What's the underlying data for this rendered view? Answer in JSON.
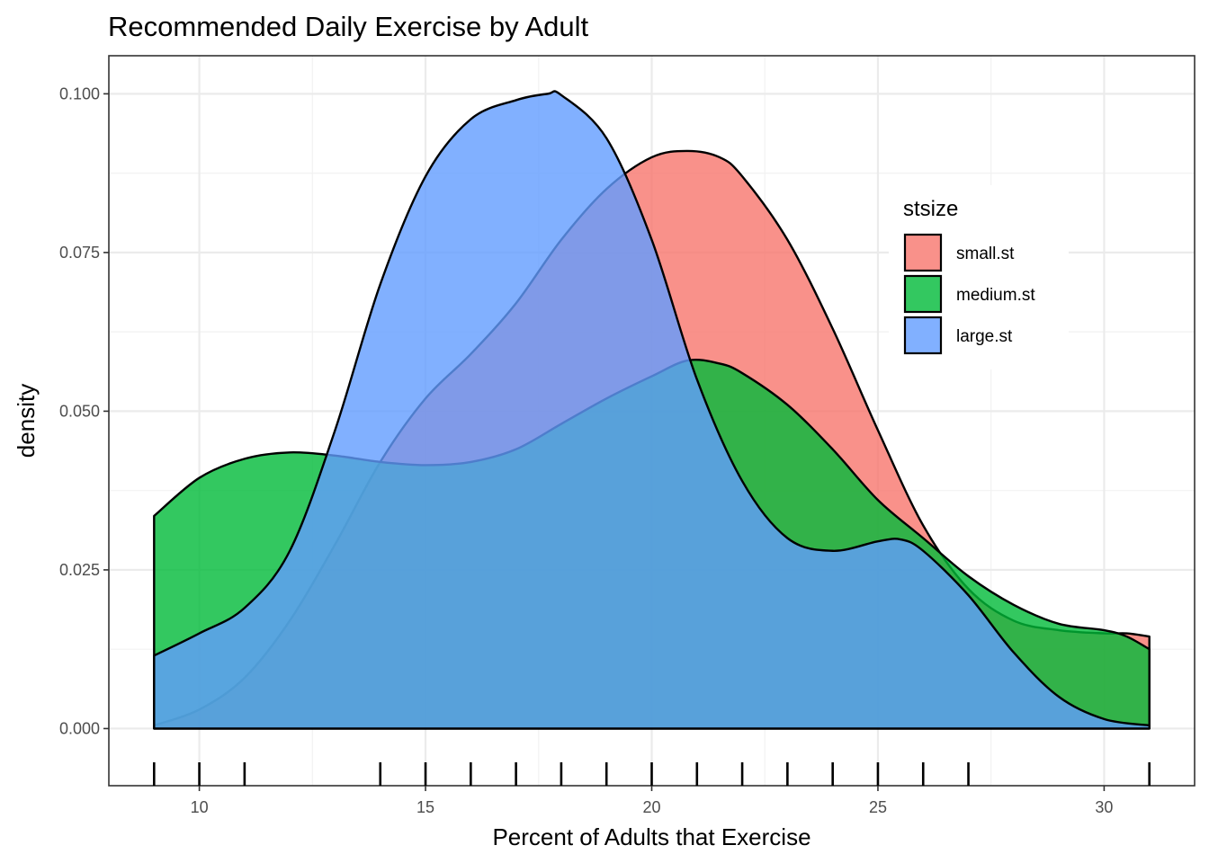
{
  "chart_data": {
    "type": "area",
    "subtype": "density",
    "title": "Recommended Daily Exercise by Adult",
    "xlabel": "Percent of Adults that Exercise",
    "ylabel": "density",
    "xlim": [
      8,
      32
    ],
    "ylim": [
      -0.009,
      0.106
    ],
    "x_ticks": [
      10,
      15,
      20,
      25,
      30
    ],
    "x_tick_labels": [
      "10",
      "15",
      "20",
      "25",
      "30"
    ],
    "y_ticks": [
      0,
      0.025,
      0.05,
      0.075,
      0.1
    ],
    "y_tick_labels": [
      "0.000",
      "0.025",
      "0.050",
      "0.075",
      "0.100"
    ],
    "grid": true,
    "legend": {
      "title": "stsize",
      "position": "right-inside-top"
    },
    "rug": [
      9,
      10,
      11,
      14,
      15,
      16,
      17,
      18,
      19,
      20,
      21,
      22,
      23,
      24,
      25,
      26,
      27,
      31
    ],
    "series": [
      {
        "name": "small.st",
        "color": "#F8766D",
        "points": [
          [
            9,
            0.0005
          ],
          [
            10,
            0.003
          ],
          [
            11,
            0.008
          ],
          [
            12,
            0.017
          ],
          [
            13,
            0.029
          ],
          [
            14,
            0.042
          ],
          [
            15,
            0.052
          ],
          [
            16,
            0.059
          ],
          [
            17,
            0.067
          ],
          [
            18,
            0.077
          ],
          [
            19,
            0.085
          ],
          [
            20,
            0.09
          ],
          [
            20.8,
            0.091
          ],
          [
            21.5,
            0.09
          ],
          [
            22,
            0.087
          ],
          [
            23,
            0.077
          ],
          [
            24,
            0.063
          ],
          [
            25,
            0.047
          ],
          [
            26,
            0.032
          ],
          [
            27,
            0.022
          ],
          [
            28,
            0.017
          ],
          [
            29,
            0.0155
          ],
          [
            30,
            0.015
          ],
          [
            30.5,
            0.015
          ],
          [
            31,
            0.0145
          ]
        ]
      },
      {
        "name": "medium.st",
        "color": "#00BA38",
        "points": [
          [
            9,
            0.0335
          ],
          [
            10,
            0.0395
          ],
          [
            11,
            0.0425
          ],
          [
            12,
            0.0435
          ],
          [
            13,
            0.043
          ],
          [
            14,
            0.042
          ],
          [
            15,
            0.0415
          ],
          [
            16,
            0.042
          ],
          [
            17,
            0.044
          ],
          [
            18,
            0.048
          ],
          [
            19,
            0.052
          ],
          [
            20,
            0.0555
          ],
          [
            20.8,
            0.058
          ],
          [
            21.5,
            0.0575
          ],
          [
            22,
            0.056
          ],
          [
            23,
            0.051
          ],
          [
            24,
            0.044
          ],
          [
            25,
            0.036
          ],
          [
            26,
            0.03
          ],
          [
            27,
            0.024
          ],
          [
            28,
            0.0195
          ],
          [
            29,
            0.0165
          ],
          [
            30,
            0.0155
          ],
          [
            30.5,
            0.0145
          ],
          [
            31,
            0.0125
          ]
        ]
      },
      {
        "name": "large.st",
        "color": "#619CFF",
        "points": [
          [
            9,
            0.0115
          ],
          [
            10,
            0.015
          ],
          [
            11,
            0.019
          ],
          [
            12,
            0.028
          ],
          [
            13,
            0.047
          ],
          [
            14,
            0.07
          ],
          [
            15,
            0.087
          ],
          [
            16,
            0.096
          ],
          [
            17,
            0.099
          ],
          [
            17.7,
            0.1
          ],
          [
            18,
            0.0998
          ],
          [
            19,
            0.093
          ],
          [
            20,
            0.077
          ],
          [
            21,
            0.055
          ],
          [
            22,
            0.039
          ],
          [
            23,
            0.03
          ],
          [
            24,
            0.028
          ],
          [
            25,
            0.0295
          ],
          [
            25.5,
            0.0298
          ],
          [
            26,
            0.028
          ],
          [
            27,
            0.021
          ],
          [
            28,
            0.012
          ],
          [
            29,
            0.005
          ],
          [
            30,
            0.0015
          ],
          [
            31,
            0.0005
          ]
        ]
      }
    ]
  }
}
